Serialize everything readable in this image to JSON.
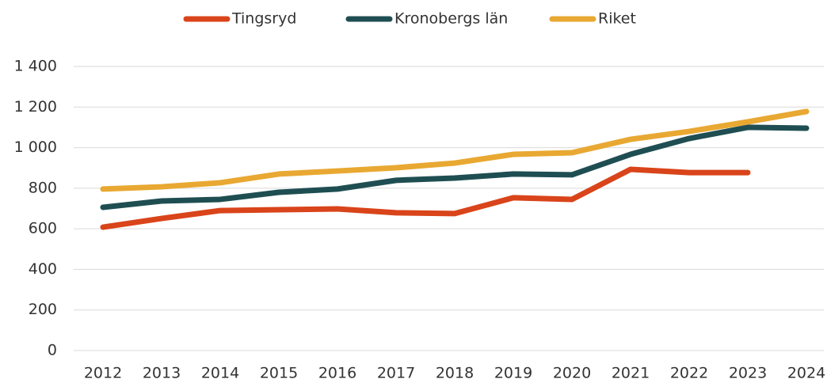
{
  "chart_data": {
    "type": "line",
    "categories": [
      "2012",
      "2013",
      "2014",
      "2015",
      "2016",
      "2017",
      "2018",
      "2019",
      "2020",
      "2021",
      "2022",
      "2023",
      "2024"
    ],
    "series": [
      {
        "name": "Tingsryd",
        "color": "#d9441a",
        "values": [
          608,
          651,
          690,
          694,
          698,
          679,
          675,
          753,
          745,
          893,
          877,
          877,
          null
        ]
      },
      {
        "name": "Kronobergs län",
        "color": "#1f4e52",
        "values": [
          706,
          737,
          745,
          780,
          796,
          839,
          850,
          870,
          866,
          967,
          1045,
          1100,
          1096
        ]
      },
      {
        "name": "Riket",
        "color": "#e8a832",
        "values": [
          796,
          807,
          827,
          870,
          885,
          901,
          924,
          967,
          975,
          1041,
          1080,
          1127,
          1178
        ]
      }
    ],
    "ylim": [
      0,
      1400
    ],
    "yticks": [
      0,
      200,
      400,
      600,
      800,
      {
        "value": 1000,
        "label": "1 000"
      },
      {
        "value": 1200,
        "label": "1 200"
      },
      {
        "value": 1400,
        "label": "1 400"
      }
    ],
    "grid": true,
    "legend": "top"
  }
}
